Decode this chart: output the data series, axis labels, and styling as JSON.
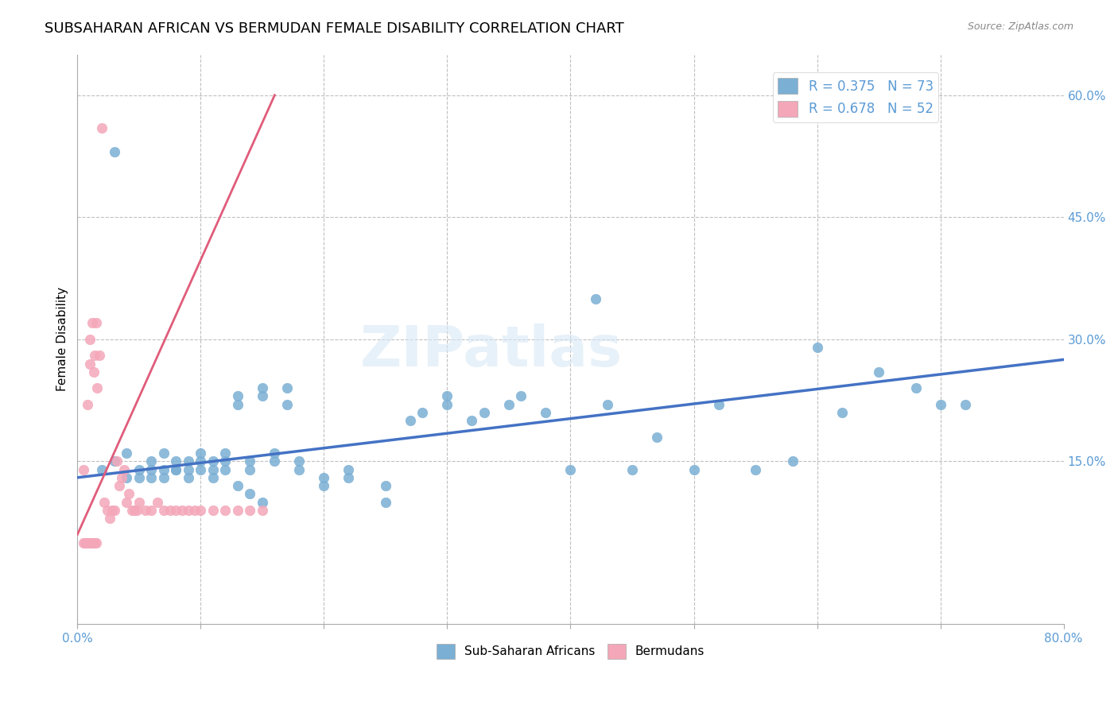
{
  "title": "SUBSAHARAN AFRICAN VS BERMUDAN FEMALE DISABILITY CORRELATION CHART",
  "source": "Source: ZipAtlas.com",
  "ylabel": "Female Disability",
  "right_yticks": [
    "60.0%",
    "45.0%",
    "30.0%",
    "15.0%"
  ],
  "right_ytick_vals": [
    0.6,
    0.45,
    0.3,
    0.15
  ],
  "xlim": [
    0.0,
    0.8
  ],
  "ylim": [
    -0.05,
    0.65
  ],
  "legend1_label": "R = 0.375   N = 73",
  "legend2_label": "R = 0.678   N = 52",
  "legend_bottom_label1": "Sub-Saharan Africans",
  "legend_bottom_label2": "Bermudans",
  "blue_color": "#7bafd4",
  "pink_color": "#f4a7b9",
  "blue_line_color": "#4472c4",
  "pink_line_color": "#e05c7a",
  "watermark": "ZIPatlas",
  "blue_scatter_x": [
    0.02,
    0.03,
    0.04,
    0.05,
    0.06,
    0.06,
    0.07,
    0.07,
    0.08,
    0.08,
    0.09,
    0.09,
    0.1,
    0.1,
    0.11,
    0.11,
    0.12,
    0.12,
    0.13,
    0.13,
    0.14,
    0.14,
    0.15,
    0.15,
    0.16,
    0.16,
    0.17,
    0.17,
    0.18,
    0.18,
    0.2,
    0.2,
    0.22,
    0.22,
    0.25,
    0.25,
    0.27,
    0.28,
    0.3,
    0.3,
    0.32,
    0.33,
    0.35,
    0.36,
    0.38,
    0.4,
    0.42,
    0.43,
    0.45,
    0.47,
    0.5,
    0.52,
    0.55,
    0.58,
    0.6,
    0.62,
    0.65,
    0.68,
    0.7,
    0.72,
    0.03,
    0.04,
    0.05,
    0.06,
    0.07,
    0.08,
    0.09,
    0.1,
    0.11,
    0.12,
    0.13,
    0.14,
    0.15
  ],
  "blue_scatter_y": [
    0.14,
    0.15,
    0.16,
    0.14,
    0.13,
    0.15,
    0.14,
    0.16,
    0.15,
    0.14,
    0.14,
    0.15,
    0.15,
    0.16,
    0.14,
    0.15,
    0.15,
    0.16,
    0.22,
    0.23,
    0.14,
    0.15,
    0.23,
    0.24,
    0.15,
    0.16,
    0.22,
    0.24,
    0.14,
    0.15,
    0.12,
    0.13,
    0.13,
    0.14,
    0.1,
    0.12,
    0.2,
    0.21,
    0.22,
    0.23,
    0.2,
    0.21,
    0.22,
    0.23,
    0.21,
    0.14,
    0.35,
    0.22,
    0.14,
    0.18,
    0.14,
    0.22,
    0.14,
    0.15,
    0.29,
    0.21,
    0.26,
    0.24,
    0.22,
    0.22,
    0.53,
    0.13,
    0.13,
    0.14,
    0.13,
    0.14,
    0.13,
    0.14,
    0.13,
    0.14,
    0.12,
    0.11,
    0.1
  ],
  "pink_scatter_x": [
    0.005,
    0.008,
    0.01,
    0.01,
    0.012,
    0.013,
    0.014,
    0.015,
    0.016,
    0.018,
    0.02,
    0.022,
    0.024,
    0.026,
    0.028,
    0.03,
    0.032,
    0.034,
    0.036,
    0.038,
    0.04,
    0.042,
    0.044,
    0.046,
    0.048,
    0.05,
    0.055,
    0.06,
    0.065,
    0.07,
    0.075,
    0.08,
    0.085,
    0.09,
    0.095,
    0.1,
    0.11,
    0.12,
    0.13,
    0.14,
    0.15,
    0.005,
    0.006,
    0.007,
    0.008,
    0.009,
    0.01,
    0.011,
    0.012,
    0.013,
    0.014,
    0.015
  ],
  "pink_scatter_y": [
    0.14,
    0.22,
    0.27,
    0.3,
    0.32,
    0.26,
    0.28,
    0.32,
    0.24,
    0.28,
    0.56,
    0.1,
    0.09,
    0.08,
    0.09,
    0.09,
    0.15,
    0.12,
    0.13,
    0.14,
    0.1,
    0.11,
    0.09,
    0.09,
    0.09,
    0.1,
    0.09,
    0.09,
    0.1,
    0.09,
    0.09,
    0.09,
    0.09,
    0.09,
    0.09,
    0.09,
    0.09,
    0.09,
    0.09,
    0.09,
    0.09,
    0.05,
    0.05,
    0.05,
    0.05,
    0.05,
    0.05,
    0.05,
    0.05,
    0.05,
    0.05,
    0.05
  ],
  "blue_trend_x": [
    0.0,
    0.8
  ],
  "blue_trend_y": [
    0.13,
    0.275
  ],
  "pink_trend_x": [
    0.0,
    0.16
  ],
  "pink_trend_y": [
    0.06,
    0.6
  ],
  "grid_xticks": [
    0.1,
    0.2,
    0.3,
    0.4,
    0.5,
    0.6,
    0.7
  ]
}
